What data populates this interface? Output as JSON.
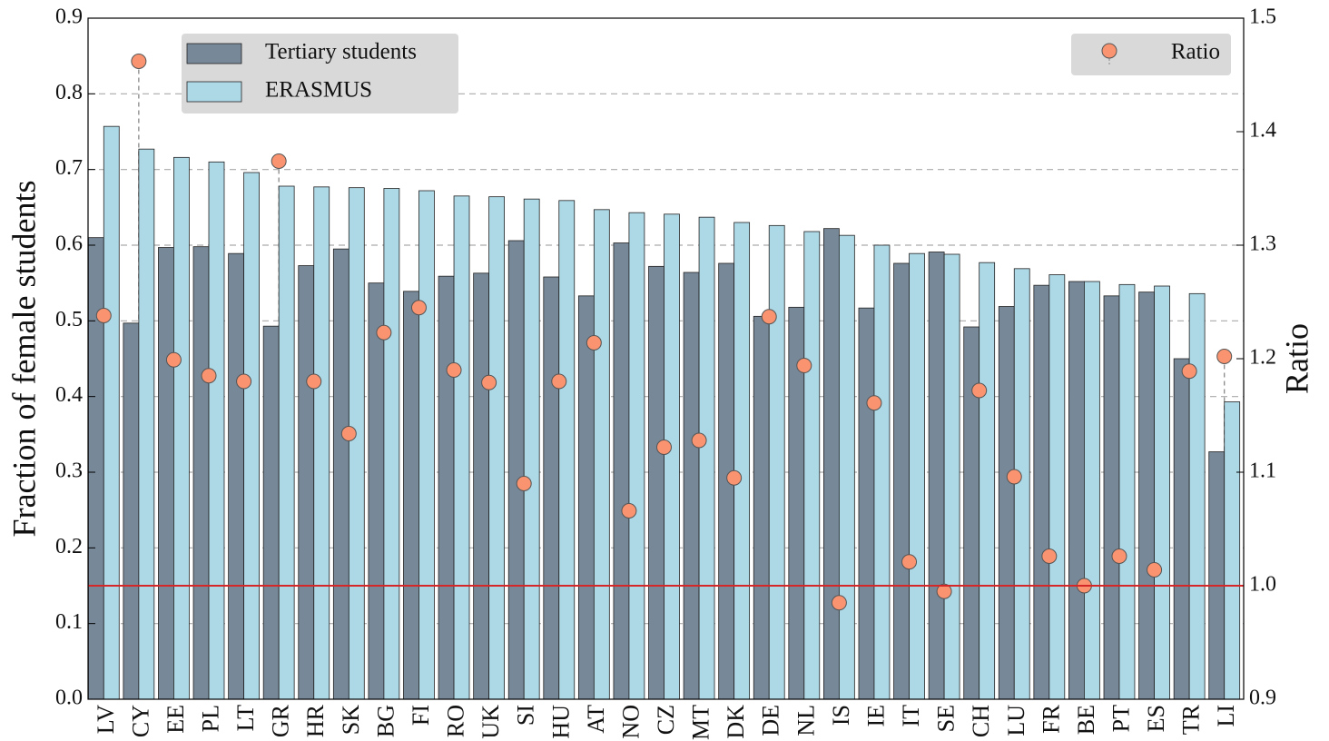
{
  "chart_data": {
    "type": "bar",
    "categories": [
      "LV",
      "CY",
      "EE",
      "PL",
      "LT",
      "GR",
      "HR",
      "SK",
      "BG",
      "FI",
      "RO",
      "UK",
      "SI",
      "HU",
      "AT",
      "NO",
      "CZ",
      "MT",
      "DK",
      "DE",
      "NL",
      "IS",
      "IE",
      "IT",
      "SE",
      "CH",
      "LU",
      "FR",
      "BE",
      "PT",
      "ES",
      "TR",
      "LI"
    ],
    "series": [
      {
        "name": "Tertiary students",
        "color": "#778899",
        "values": [
          0.61,
          0.497,
          0.597,
          0.598,
          0.589,
          0.493,
          0.573,
          0.595,
          0.55,
          0.539,
          0.559,
          0.563,
          0.606,
          0.558,
          0.533,
          0.603,
          0.572,
          0.564,
          0.576,
          0.506,
          0.518,
          0.622,
          0.517,
          0.576,
          0.591,
          0.492,
          0.519,
          0.547,
          0.552,
          0.533,
          0.538,
          0.45,
          0.327
        ]
      },
      {
        "name": "ERASMUS",
        "color": "#add8e6",
        "values": [
          0.757,
          0.727,
          0.716,
          0.71,
          0.696,
          0.678,
          0.677,
          0.676,
          0.675,
          0.672,
          0.665,
          0.664,
          0.661,
          0.659,
          0.647,
          0.643,
          0.641,
          0.637,
          0.63,
          0.626,
          0.618,
          0.613,
          0.6,
          0.589,
          0.588,
          0.577,
          0.569,
          0.561,
          0.552,
          0.548,
          0.546,
          0.536,
          0.393
        ]
      },
      {
        "name": "Ratio",
        "color": "#fa9470",
        "type": "scatter",
        "axis": "y2",
        "stems": true,
        "values": [
          1.238,
          1.462,
          1.199,
          1.185,
          1.18,
          1.374,
          1.18,
          1.134,
          1.223,
          1.245,
          1.19,
          1.179,
          1.09,
          1.18,
          1.214,
          1.066,
          1.122,
          1.128,
          1.095,
          1.237,
          1.194,
          0.985,
          1.161,
          1.021,
          0.995,
          1.172,
          1.096,
          1.026,
          1.0,
          1.026,
          1.014,
          1.189,
          1.202
        ]
      }
    ],
    "ylabel": "Fraction of female students",
    "y2label": "Ratio",
    "ylim": [
      0,
      0.9
    ],
    "yticks": [
      {
        "value": 0,
        "label": "0.0"
      },
      0.1,
      0.2,
      0.3,
      0.4,
      0.5,
      0.6,
      0.7,
      0.8,
      0.9
    ],
    "y2lim": [
      0.9,
      1.5
    ],
    "y2ticks": [
      0.9,
      {
        "value": 1,
        "label": "1.0"
      },
      1.1,
      1.2,
      1.3,
      1.4,
      1.5
    ],
    "reference_line": {
      "value": 1,
      "axis": "y2",
      "color": "#d62728"
    },
    "grid": true,
    "legend": "upper left",
    "y2_legend": "upper right"
  }
}
